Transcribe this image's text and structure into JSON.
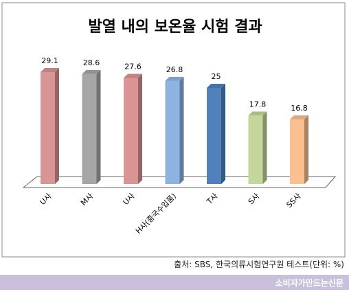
{
  "chart_data": {
    "type": "bar",
    "title": "발열 내의 보온율 시험 결과",
    "categories": [
      "U사",
      "M사",
      "U사",
      "H사(중국수입품)",
      "T사",
      "S사",
      "SS사"
    ],
    "values": [
      29.1,
      28.6,
      27.6,
      26.8,
      25,
      17.8,
      16.8
    ],
    "value_labels": [
      "29.1",
      "28.6",
      "27.6",
      "26.8",
      "25",
      "17.8",
      "16.8"
    ],
    "colors": [
      "#d99594",
      "#a6a6a6",
      "#d99594",
      "#8db3e2",
      "#4f81bd",
      "#c3d69b",
      "#fac08f"
    ],
    "xlabel": "",
    "ylabel": "",
    "ylim": [
      0,
      30
    ],
    "grid": false,
    "legend": "none"
  },
  "source": "출처: SBS, 한국의류시험연구원 테스트(단위: %)",
  "footer": "소비자가만드는신문"
}
